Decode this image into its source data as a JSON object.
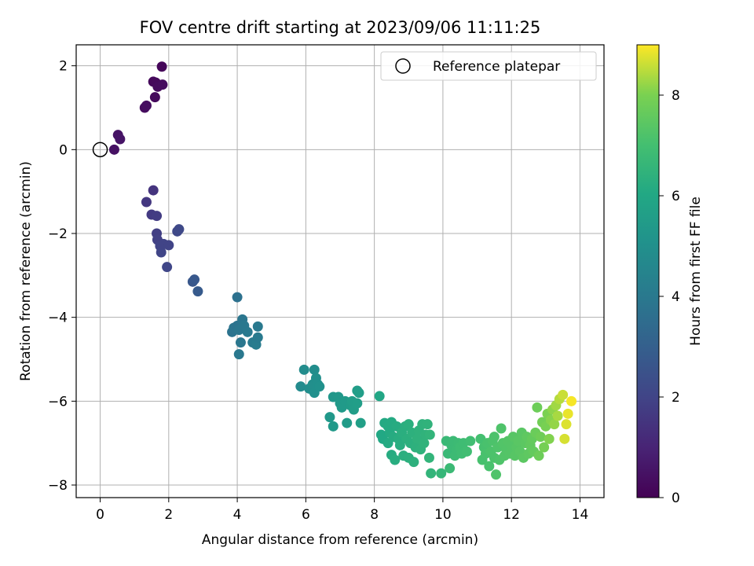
{
  "chart_data": {
    "type": "scatter",
    "title": "FOV centre drift starting at 2023/09/06 11:11:25",
    "xlabel": "Angular distance from reference (arcmin)",
    "ylabel": "Rotation from reference (arcmin)",
    "xlim": [
      -0.7,
      14.7
    ],
    "ylim": [
      -8.3,
      2.5
    ],
    "xticks": [
      0,
      2,
      4,
      6,
      8,
      10,
      12,
      14
    ],
    "yticks": [
      -8,
      -6,
      -4,
      -2,
      0,
      2
    ],
    "xtick_labels": [
      "0",
      "2",
      "4",
      "6",
      "8",
      "10",
      "12",
      "14"
    ],
    "ytick_labels": [
      "−8",
      "−6",
      "−4",
      "−2",
      "0",
      "2"
    ],
    "grid": true,
    "legend": {
      "placement": "top-right",
      "label": "Reference platepar"
    },
    "reference_point": {
      "x": 0,
      "y": 0
    },
    "colormap": "viridis",
    "colorbar": {
      "label": "Hours from first FF file",
      "range": [
        0,
        9
      ],
      "ticks": [
        0,
        2,
        4,
        6,
        8
      ],
      "tick_labels": [
        "0",
        "2",
        "4",
        "6",
        "8"
      ]
    },
    "points": [
      [
        0.41,
        0.0,
        0.45
      ],
      [
        0.52,
        0.35,
        0.5
      ],
      [
        0.58,
        0.25,
        0.55
      ],
      [
        1.3,
        1.0,
        0.3
      ],
      [
        1.35,
        1.05,
        0.35
      ],
      [
        1.6,
        1.25,
        0.25
      ],
      [
        1.55,
        1.62,
        0.2
      ],
      [
        1.62,
        1.6,
        0.22
      ],
      [
        1.68,
        1.5,
        0.28
      ],
      [
        1.82,
        1.55,
        0.3
      ],
      [
        1.8,
        1.98,
        0.15
      ],
      [
        1.35,
        -1.25,
        1.6
      ],
      [
        1.55,
        -0.97,
        1.5
      ],
      [
        1.5,
        -1.55,
        1.7
      ],
      [
        1.65,
        -1.58,
        1.75
      ],
      [
        1.65,
        -2.0,
        1.85
      ],
      [
        1.67,
        -2.15,
        1.9
      ],
      [
        1.75,
        -2.3,
        2.0
      ],
      [
        1.78,
        -2.45,
        2.05
      ],
      [
        1.85,
        -2.25,
        2.0
      ],
      [
        2.0,
        -2.28,
        2.0
      ],
      [
        1.95,
        -2.8,
        2.1
      ],
      [
        2.25,
        -1.95,
        2.15
      ],
      [
        2.3,
        -1.9,
        2.2
      ],
      [
        2.7,
        -3.15,
        2.7
      ],
      [
        2.75,
        -3.1,
        2.75
      ],
      [
        2.85,
        -3.38,
        2.8
      ],
      [
        4.0,
        -3.52,
        3.7
      ],
      [
        3.85,
        -4.35,
        3.8
      ],
      [
        3.9,
        -4.25,
        3.85
      ],
      [
        4.0,
        -4.2,
        3.8
      ],
      [
        4.05,
        -4.3,
        3.9
      ],
      [
        4.1,
        -4.6,
        3.95
      ],
      [
        4.05,
        -4.88,
        4.0
      ],
      [
        4.15,
        -4.05,
        3.9
      ],
      [
        4.2,
        -4.2,
        4.0
      ],
      [
        4.3,
        -4.35,
        4.05
      ],
      [
        4.45,
        -4.6,
        4.1
      ],
      [
        4.55,
        -4.65,
        4.15
      ],
      [
        4.6,
        -4.48,
        4.1
      ],
      [
        4.6,
        -4.22,
        4.05
      ],
      [
        5.85,
        -5.65,
        4.75
      ],
      [
        5.95,
        -5.25,
        4.8
      ],
      [
        6.1,
        -5.7,
        4.85
      ],
      [
        6.2,
        -5.6,
        4.9
      ],
      [
        6.25,
        -5.25,
        4.85
      ],
      [
        6.25,
        -5.8,
        4.95
      ],
      [
        6.3,
        -5.45,
        4.9
      ],
      [
        6.35,
        -5.6,
        4.95
      ],
      [
        6.4,
        -5.65,
        5.0
      ],
      [
        6.7,
        -6.38,
        5.3
      ],
      [
        6.8,
        -6.6,
        5.35
      ],
      [
        6.8,
        -5.9,
        5.25
      ],
      [
        6.95,
        -5.9,
        5.3
      ],
      [
        7.0,
        -6.05,
        5.35
      ],
      [
        7.05,
        -6.15,
        5.4
      ],
      [
        7.15,
        -6.0,
        5.4
      ],
      [
        7.2,
        -6.52,
        5.45
      ],
      [
        7.3,
        -6.1,
        5.45
      ],
      [
        7.35,
        -6.0,
        5.5
      ],
      [
        7.4,
        -6.2,
        5.5
      ],
      [
        7.5,
        -6.05,
        5.55
      ],
      [
        7.5,
        -5.75,
        5.5
      ],
      [
        7.55,
        -5.8,
        5.55
      ],
      [
        7.6,
        -6.52,
        5.6
      ],
      [
        8.15,
        -5.88,
        5.9
      ],
      [
        8.2,
        -6.8,
        6.0
      ],
      [
        8.25,
        -6.9,
        6.0
      ],
      [
        8.3,
        -6.52,
        6.05
      ],
      [
        8.4,
        -6.6,
        6.1
      ],
      [
        8.4,
        -7.0,
        6.1
      ],
      [
        8.45,
        -6.75,
        6.1
      ],
      [
        8.5,
        -7.28,
        6.15
      ],
      [
        8.5,
        -6.5,
        6.1
      ],
      [
        8.55,
        -6.85,
        6.15
      ],
      [
        8.6,
        -7.4,
        6.2
      ],
      [
        8.65,
        -6.6,
        6.15
      ],
      [
        8.7,
        -6.9,
        6.2
      ],
      [
        8.75,
        -7.05,
        6.2
      ],
      [
        8.8,
        -6.75,
        6.25
      ],
      [
        8.85,
        -7.3,
        6.25
      ],
      [
        8.9,
        -6.6,
        6.25
      ],
      [
        8.95,
        -6.9,
        6.3
      ],
      [
        9.0,
        -7.35,
        6.3
      ],
      [
        9.0,
        -6.55,
        6.3
      ],
      [
        9.05,
        -7.0,
        6.3
      ],
      [
        9.1,
        -6.75,
        6.35
      ],
      [
        9.15,
        -7.45,
        6.35
      ],
      [
        9.2,
        -7.1,
        6.35
      ],
      [
        9.25,
        -6.9,
        6.4
      ],
      [
        9.3,
        -6.7,
        6.4
      ],
      [
        9.35,
        -7.15,
        6.4
      ],
      [
        9.4,
        -6.55,
        6.4
      ],
      [
        9.45,
        -7.0,
        6.45
      ],
      [
        9.5,
        -6.8,
        6.45
      ],
      [
        9.55,
        -6.55,
        6.45
      ],
      [
        9.6,
        -7.35,
        6.5
      ],
      [
        9.62,
        -6.8,
        6.5
      ],
      [
        9.65,
        -7.72,
        6.5
      ],
      [
        9.95,
        -7.72,
        6.6
      ],
      [
        10.1,
        -6.95,
        6.7
      ],
      [
        10.15,
        -7.25,
        6.7
      ],
      [
        10.2,
        -7.6,
        6.75
      ],
      [
        10.25,
        -7.05,
        6.75
      ],
      [
        10.3,
        -6.95,
        6.75
      ],
      [
        10.35,
        -7.3,
        6.8
      ],
      [
        10.4,
        -7.15,
        6.8
      ],
      [
        10.45,
        -7.0,
        6.8
      ],
      [
        10.5,
        -7.1,
        6.85
      ],
      [
        10.55,
        -7.25,
        6.85
      ],
      [
        10.6,
        -7.0,
        6.85
      ],
      [
        10.7,
        -7.2,
        6.9
      ],
      [
        10.8,
        -6.95,
        6.9
      ],
      [
        11.1,
        -6.9,
        7.0
      ],
      [
        11.15,
        -7.4,
        7.05
      ],
      [
        11.2,
        -7.1,
        7.05
      ],
      [
        11.25,
        -7.25,
        7.1
      ],
      [
        11.3,
        -7.0,
        7.1
      ],
      [
        11.35,
        -7.55,
        7.1
      ],
      [
        11.4,
        -7.2,
        7.15
      ],
      [
        11.45,
        -6.95,
        7.15
      ],
      [
        11.5,
        -7.35,
        7.15
      ],
      [
        11.5,
        -6.85,
        7.15
      ],
      [
        11.55,
        -7.75,
        7.2
      ],
      [
        11.6,
        -7.1,
        7.2
      ],
      [
        11.65,
        -7.4,
        7.2
      ],
      [
        11.7,
        -6.65,
        7.2
      ],
      [
        11.75,
        -7.0,
        7.25
      ],
      [
        11.8,
        -7.3,
        7.25
      ],
      [
        11.85,
        -7.15,
        7.25
      ],
      [
        11.9,
        -6.95,
        7.3
      ],
      [
        11.95,
        -7.25,
        7.3
      ],
      [
        12.0,
        -7.05,
        7.3
      ],
      [
        12.05,
        -6.85,
        7.35
      ],
      [
        12.1,
        -7.3,
        7.35
      ],
      [
        12.15,
        -7.1,
        7.35
      ],
      [
        12.2,
        -6.95,
        7.4
      ],
      [
        12.25,
        -7.2,
        7.4
      ],
      [
        12.3,
        -6.75,
        7.4
      ],
      [
        12.35,
        -7.35,
        7.45
      ],
      [
        12.4,
        -7.0,
        7.45
      ],
      [
        12.45,
        -6.85,
        7.5
      ],
      [
        12.5,
        -7.25,
        7.5
      ],
      [
        12.55,
        -7.05,
        7.55
      ],
      [
        12.6,
        -6.9,
        7.6
      ],
      [
        12.65,
        -7.2,
        7.6
      ],
      [
        12.7,
        -6.75,
        7.7
      ],
      [
        12.75,
        -6.15,
        7.75
      ],
      [
        12.8,
        -7.3,
        7.75
      ],
      [
        12.85,
        -6.85,
        7.8
      ],
      [
        12.9,
        -6.5,
        7.85
      ],
      [
        12.95,
        -7.1,
        7.9
      ],
      [
        13.0,
        -6.6,
        7.95
      ],
      [
        13.05,
        -6.3,
        8.0
      ],
      [
        13.1,
        -6.9,
        8.05
      ],
      [
        13.15,
        -6.45,
        8.1
      ],
      [
        13.2,
        -6.2,
        8.15
      ],
      [
        13.25,
        -6.55,
        8.2
      ],
      [
        13.3,
        -6.1,
        8.3
      ],
      [
        13.35,
        -6.35,
        8.35
      ],
      [
        13.4,
        -5.95,
        8.45
      ],
      [
        13.5,
        -5.85,
        8.6
      ],
      [
        13.55,
        -6.9,
        8.7
      ],
      [
        13.6,
        -6.55,
        8.75
      ],
      [
        13.65,
        -6.3,
        8.85
      ],
      [
        13.75,
        -6.0,
        8.95
      ]
    ]
  }
}
